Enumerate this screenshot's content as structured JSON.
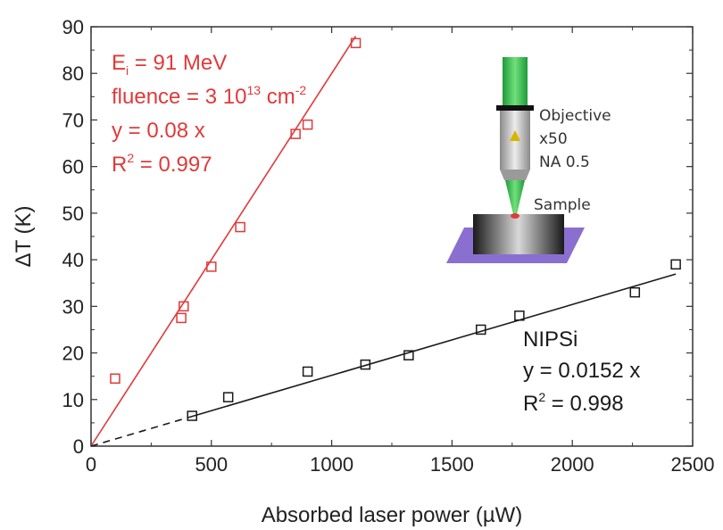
{
  "chart_data": {
    "type": "scatter",
    "xlabel": "Absorbed laser power (µW)",
    "ylabel": "ΔT (K)",
    "xlim": [
      0,
      2500
    ],
    "ylim": [
      0,
      90
    ],
    "xticks": [
      0,
      500,
      1000,
      1500,
      2000,
      2500
    ],
    "yticks": [
      0,
      10,
      20,
      30,
      40,
      50,
      60,
      70,
      80,
      90
    ],
    "grid": false,
    "series": [
      {
        "color": "#e03a3a",
        "marker": "open-square",
        "fit_slope": 0.08,
        "fit_x_range": [
          0,
          1100
        ],
        "points": [
          {
            "x": 100,
            "y": 14.5
          },
          {
            "x": 375,
            "y": 27.5
          },
          {
            "x": 385,
            "y": 30
          },
          {
            "x": 500,
            "y": 38.5
          },
          {
            "x": 620,
            "y": 47
          },
          {
            "x": 850,
            "y": 67
          },
          {
            "x": 900,
            "y": 69
          },
          {
            "x": 1100,
            "y": 86.5
          }
        ],
        "annotation": {
          "e_label": "E",
          "e_subscript": "i",
          "e_value": " = 91 MeV",
          "fluence": "fluence = 3 10",
          "fluence_sup": "13",
          "fluence_unit": " cm",
          "fluence_unit_sup": "-2",
          "equation": "y = 0.08 x",
          "r2_prefix": "R",
          "r2_sup": "2",
          "r2_value": " = 0.997"
        }
      },
      {
        "name": "NIPSi",
        "color": "#1a1a1a",
        "marker": "open-square",
        "fit_slope": 0.0152,
        "fit_x_range": [
          0,
          2430
        ],
        "dashed_until_x": 400,
        "points": [
          {
            "x": 420,
            "y": 6.5
          },
          {
            "x": 570,
            "y": 10.5
          },
          {
            "x": 900,
            "y": 16
          },
          {
            "x": 1140,
            "y": 17.5
          },
          {
            "x": 1320,
            "y": 19.5
          },
          {
            "x": 1620,
            "y": 25
          },
          {
            "x": 1780,
            "y": 28
          },
          {
            "x": 2260,
            "y": 33
          },
          {
            "x": 2430,
            "y": 39
          }
        ],
        "annotation": {
          "equation": "y = 0.0152 x",
          "r2_prefix": "R",
          "r2_sup": "2",
          "r2_value": " = 0.998"
        }
      }
    ],
    "inset": {
      "objective_label": "Objective",
      "magnification": "x50",
      "aperture": "NA 0.5",
      "sample_label": "Sample"
    }
  }
}
